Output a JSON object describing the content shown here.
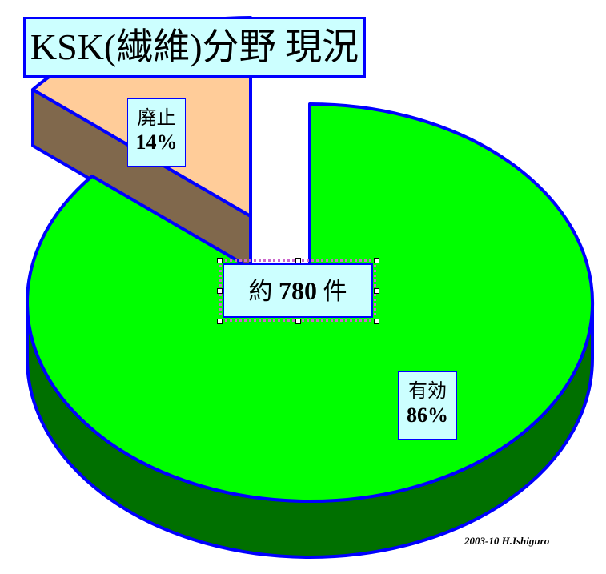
{
  "chart_data": {
    "type": "pie",
    "style": "3d-exploded",
    "title": "KSK(繊維)分野 現況",
    "center_label": {
      "prefix": "約",
      "value": "780",
      "suffix": "件"
    },
    "slices": [
      {
        "label": "有効",
        "value": 86,
        "value_label": "86%",
        "color": "#00ff00",
        "side_color": "#007000"
      },
      {
        "label": "廃止",
        "value": 14,
        "value_label": "14%",
        "color": "#ffcc99",
        "side_color": "#80684c",
        "exploded": true
      }
    ],
    "outline_color": "#0000ff",
    "label_box_color": "#ccffff"
  },
  "footer": "2003-10 H.Ishiguro"
}
